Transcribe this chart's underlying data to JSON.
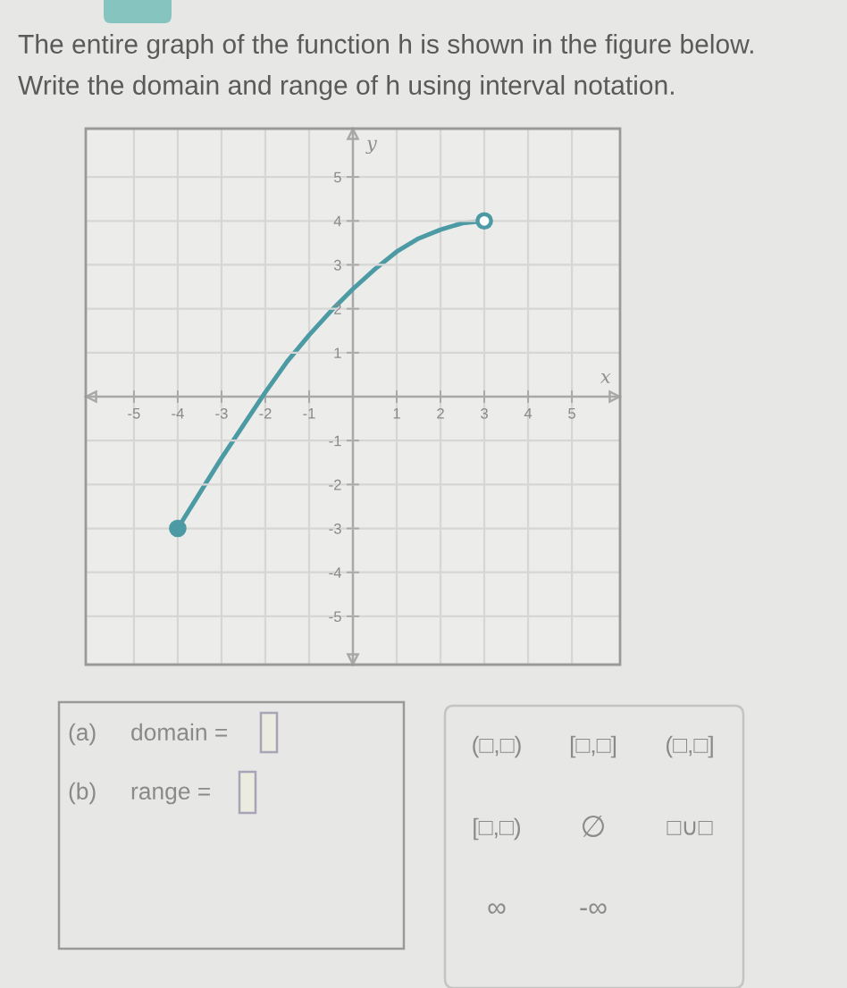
{
  "chart_data": {
    "type": "line",
    "title": "The entire graph of the function h is shown in the figure below.",
    "subtitle": "Write the domain and range of h using interval notation.",
    "xlabel": "x",
    "ylabel": "y",
    "series": [
      {
        "color": "#4c9aa3",
        "x": [
          -4,
          -3.5,
          -3,
          -2.5,
          -2,
          -1.5,
          -1,
          -0.5,
          0,
          0.5,
          1,
          1.5,
          2,
          2.5,
          3
        ],
        "values": [
          -3,
          -2.2,
          -1.4,
          -0.65,
          0.1,
          0.8,
          1.4,
          1.95,
          2.45,
          2.9,
          3.3,
          3.6,
          3.8,
          3.95,
          4
        ]
      },
      {
        "type": "scatter",
        "color": "#4c9aa3",
        "x": [
          -4
        ],
        "values": [
          -3
        ],
        "marker": "circle"
      },
      {
        "type": "scatter",
        "color": "#4c9aa3",
        "colors": [
          "#ffffff"
        ],
        "x": [
          3
        ],
        "values": [
          4
        ],
        "marker": "circle"
      }
    ],
    "xlim": [
      -6.1,
      6.1
    ],
    "ylim": [
      -6.1,
      6.1
    ],
    "xticks": [
      -5,
      -4,
      -3,
      -2,
      -1,
      1,
      2,
      3,
      4,
      5
    ],
    "yticks": [
      -5,
      -4,
      -3,
      -2,
      -1,
      1,
      2,
      3,
      4,
      5
    ],
    "grid": true,
    "annotations": [
      "(a)",
      "domain =",
      "(b)",
      "range =",
      "(□,□)",
      "[□,□]",
      "(□,□]",
      "[□,□)",
      "∅",
      "□∪□",
      "∞",
      "-∞"
    ]
  }
}
